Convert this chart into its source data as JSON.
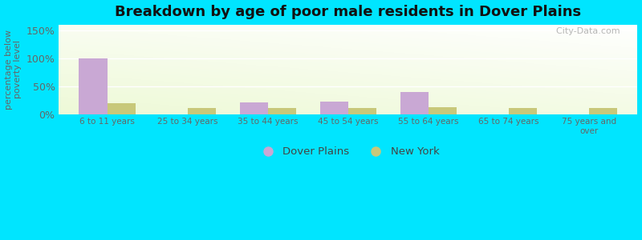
{
  "title": "Breakdown by age of poor male residents in Dover Plains",
  "categories": [
    "6 to 11 years",
    "25 to 34 years",
    "35 to 44 years",
    "45 to 54 years",
    "55 to 64 years",
    "65 to 74 years",
    "75 years and\nover"
  ],
  "dover_plains": [
    100,
    0,
    22,
    23,
    40,
    0,
    0
  ],
  "new_york": [
    20,
    11,
    11,
    11,
    13,
    12,
    12
  ],
  "dover_color": "#c9a8d4",
  "new_york_color": "#c8c87a",
  "ylabel": "percentage below\npoverty level",
  "ylim": [
    0,
    160
  ],
  "yticks": [
    0,
    50,
    100,
    150
  ],
  "ytick_labels": [
    "0%",
    "50%",
    "100%",
    "150%"
  ],
  "outer_background": "#00e5ff",
  "title_fontsize": 13,
  "bar_width": 0.35,
  "grid_color": "#ffffff",
  "watermark": "  City-Data.com"
}
